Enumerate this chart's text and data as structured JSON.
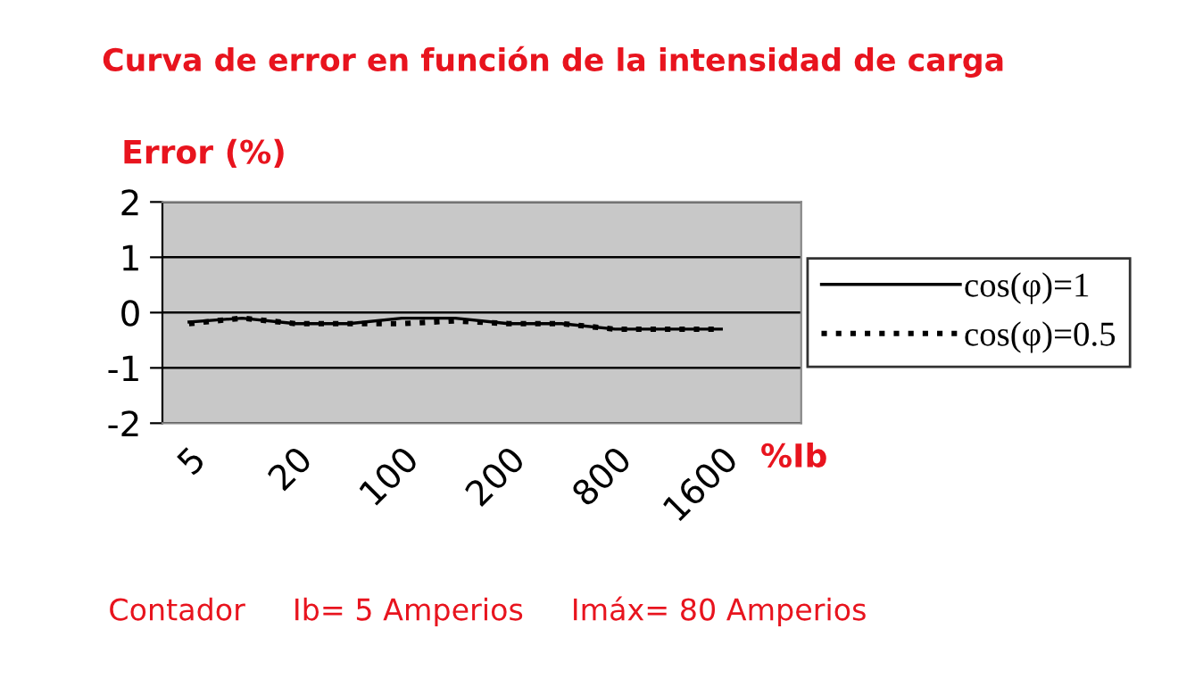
{
  "chart_data": {
    "type": "line",
    "title": "Curva de error en función de la intensidad de carga",
    "ylabel": "Error (%)",
    "xlabel": "%Ib",
    "categories": [
      "5",
      null,
      "20",
      null,
      "100",
      null,
      "200",
      null,
      "800",
      null,
      "1600",
      null
    ],
    "series": [
      {
        "name": "cos(φ)=1",
        "color": "#000000",
        "line_style": "solid",
        "values": [
          -0.17,
          -0.1,
          -0.2,
          -0.2,
          -0.1,
          -0.1,
          -0.2,
          -0.2,
          -0.3,
          -0.3,
          -0.3,
          null
        ]
      },
      {
        "name": "cos(φ)=0.5",
        "color": "#000000",
        "line_style": "dotted",
        "values": [
          -0.2,
          -0.1,
          -0.2,
          -0.2,
          -0.2,
          -0.15,
          -0.2,
          -0.2,
          -0.3,
          -0.3,
          -0.3,
          null
        ]
      }
    ],
    "ylim": [
      -2,
      2
    ],
    "yticks": [
      -2,
      -1,
      0,
      1,
      2
    ],
    "grid": "y",
    "legend": "right",
    "marker": "none",
    "annotations": [
      "Contador     Ib= 5 Amperios     Imáx= 80 Amperios"
    ]
  }
}
